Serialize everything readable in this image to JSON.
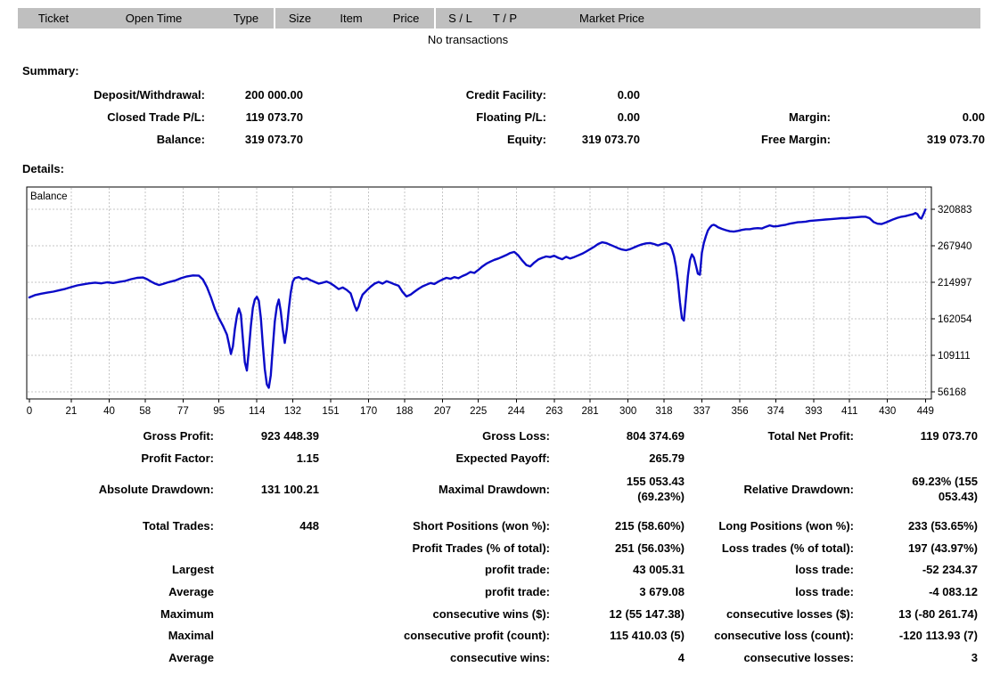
{
  "orders_table": {
    "columns": [
      {
        "label": "Ticket"
      },
      {
        "label": "Open Time"
      },
      {
        "label": "Type"
      },
      {
        "label": "Size"
      },
      {
        "label": "Item"
      },
      {
        "label": "Price"
      },
      {
        "label": "S / L"
      },
      {
        "label": "T / P"
      },
      {
        "label": "Market Price"
      }
    ],
    "empty_message": "No transactions"
  },
  "summary": {
    "heading": "Summary:",
    "rows": [
      [
        "Deposit/Withdrawal:",
        "200 000.00",
        "Credit Facility:",
        "0.00",
        "",
        ""
      ],
      [
        "Closed Trade P/L:",
        "119 073.70",
        "Floating P/L:",
        "0.00",
        "Margin:",
        "0.00"
      ],
      [
        "Balance:",
        "319 073.70",
        "Equity:",
        "319 073.70",
        "Free Margin:",
        "319 073.70"
      ]
    ]
  },
  "details": {
    "heading": "Details:"
  },
  "chart_data": {
    "type": "line",
    "title": "Balance",
    "legend_position": "top-left-inside",
    "grid": "dashed",
    "line_color": "#0a0ac8",
    "grid_color": "#c6c6c6",
    "x_ticks": [
      0,
      21,
      40,
      58,
      77,
      95,
      114,
      132,
      151,
      170,
      188,
      207,
      225,
      244,
      263,
      281,
      300,
      318,
      337,
      356,
      374,
      393,
      411,
      430,
      449
    ],
    "y_ticks": [
      320883,
      267940,
      214997,
      162054,
      109111,
      56168
    ],
    "xlim": [
      -1.3,
      452.0
    ],
    "ylim": [
      45800,
      353200
    ],
    "final_balance": 319073.7,
    "points": [
      [
        0,
        193000
      ],
      [
        3,
        196500
      ],
      [
        6,
        198500
      ],
      [
        9,
        200000
      ],
      [
        12,
        201500
      ],
      [
        15,
        203500
      ],
      [
        18,
        205500
      ],
      [
        21,
        208000
      ],
      [
        24,
        210500
      ],
      [
        27,
        212000
      ],
      [
        30,
        213500
      ],
      [
        33,
        214500
      ],
      [
        36,
        213500
      ],
      [
        39,
        215000
      ],
      [
        42,
        214000
      ],
      [
        45,
        215500
      ],
      [
        48,
        217000
      ],
      [
        51,
        219500
      ],
      [
        54,
        221500
      ],
      [
        57,
        222000
      ],
      [
        59,
        219500
      ],
      [
        61,
        216000
      ],
      [
        63,
        213000
      ],
      [
        65,
        211000
      ],
      [
        67,
        212500
      ],
      [
        69,
        214500
      ],
      [
        71,
        216000
      ],
      [
        73,
        217500
      ],
      [
        76,
        221000
      ],
      [
        79,
        223500
      ],
      [
        82,
        225000
      ],
      [
        85,
        224500
      ],
      [
        87,
        219000
      ],
      [
        89,
        208000
      ],
      [
        91,
        193000
      ],
      [
        93,
        176000
      ],
      [
        95,
        163000
      ],
      [
        97,
        152000
      ],
      [
        99,
        139000
      ],
      [
        100,
        126000
      ],
      [
        101,
        111000
      ],
      [
        102,
        122000
      ],
      [
        103,
        147000
      ],
      [
        104,
        166000
      ],
      [
        105,
        177000
      ],
      [
        106,
        168000
      ],
      [
        107,
        133000
      ],
      [
        108,
        99000
      ],
      [
        109,
        87000
      ],
      [
        110,
        117000
      ],
      [
        111,
        152000
      ],
      [
        112,
        178000
      ],
      [
        113,
        190000
      ],
      [
        114,
        194000
      ],
      [
        115,
        188000
      ],
      [
        116,
        163000
      ],
      [
        117,
        124000
      ],
      [
        118,
        89000
      ],
      [
        119,
        67000
      ],
      [
        120,
        62000
      ],
      [
        121,
        80000
      ],
      [
        122,
        121000
      ],
      [
        123,
        158000
      ],
      [
        124,
        180000
      ],
      [
        125,
        190000
      ],
      [
        126,
        173000
      ],
      [
        127,
        146000
      ],
      [
        128,
        127000
      ],
      [
        129,
        147000
      ],
      [
        130,
        176000
      ],
      [
        131,
        200000
      ],
      [
        132,
        216000
      ],
      [
        133,
        221000
      ],
      [
        135,
        222500
      ],
      [
        137,
        219500
      ],
      [
        139,
        221000
      ],
      [
        141,
        218000
      ],
      [
        143,
        215500
      ],
      [
        145,
        213000
      ],
      [
        147,
        214500
      ],
      [
        149,
        216000
      ],
      [
        151,
        213500
      ],
      [
        153,
        209500
      ],
      [
        155,
        205000
      ],
      [
        157,
        207500
      ],
      [
        159,
        204000
      ],
      [
        161,
        199000
      ],
      [
        163,
        181000
      ],
      [
        164,
        174000
      ],
      [
        165,
        180000
      ],
      [
        166,
        190000
      ],
      [
        167,
        197000
      ],
      [
        169,
        203000
      ],
      [
        171,
        208500
      ],
      [
        173,
        213000
      ],
      [
        175,
        215500
      ],
      [
        177,
        213000
      ],
      [
        179,
        216500
      ],
      [
        181,
        214500
      ],
      [
        183,
        212000
      ],
      [
        185,
        210000
      ],
      [
        187,
        201000
      ],
      [
        189,
        194500
      ],
      [
        191,
        197000
      ],
      [
        193,
        201500
      ],
      [
        195,
        205500
      ],
      [
        197,
        209000
      ],
      [
        199,
        211500
      ],
      [
        201,
        214000
      ],
      [
        203,
        212500
      ],
      [
        205,
        216000
      ],
      [
        207,
        219000
      ],
      [
        209,
        221500
      ],
      [
        211,
        220000
      ],
      [
        213,
        222500
      ],
      [
        215,
        221000
      ],
      [
        217,
        224000
      ],
      [
        219,
        226500
      ],
      [
        221,
        230000
      ],
      [
        223,
        228500
      ],
      [
        225,
        233000
      ],
      [
        227,
        238000
      ],
      [
        229,
        242000
      ],
      [
        231,
        245000
      ],
      [
        233,
        247500
      ],
      [
        235,
        249500
      ],
      [
        237,
        252000
      ],
      [
        239,
        254500
      ],
      [
        241,
        257500
      ],
      [
        243,
        259000
      ],
      [
        245,
        254000
      ],
      [
        247,
        246500
      ],
      [
        249,
        240000
      ],
      [
        251,
        238000
      ],
      [
        253,
        243500
      ],
      [
        255,
        248000
      ],
      [
        257,
        250500
      ],
      [
        259,
        252500
      ],
      [
        261,
        251500
      ],
      [
        263,
        253500
      ],
      [
        265,
        250500
      ],
      [
        267,
        248500
      ],
      [
        269,
        252000
      ],
      [
        271,
        249500
      ],
      [
        273,
        251500
      ],
      [
        275,
        254000
      ],
      [
        277,
        256500
      ],
      [
        279,
        259500
      ],
      [
        281,
        263000
      ],
      [
        283,
        266500
      ],
      [
        285,
        270500
      ],
      [
        287,
        273000
      ],
      [
        289,
        272000
      ],
      [
        291,
        269500
      ],
      [
        293,
        267000
      ],
      [
        295,
        264500
      ],
      [
        297,
        262500
      ],
      [
        299,
        261500
      ],
      [
        301,
        263000
      ],
      [
        303,
        265500
      ],
      [
        305,
        268000
      ],
      [
        307,
        270000
      ],
      [
        309,
        271500
      ],
      [
        311,
        272000
      ],
      [
        313,
        270500
      ],
      [
        315,
        268500
      ],
      [
        317,
        270500
      ],
      [
        319,
        272000
      ],
      [
        321,
        269000
      ],
      [
        322,
        263000
      ],
      [
        323,
        253000
      ],
      [
        324,
        238000
      ],
      [
        325,
        216000
      ],
      [
        326,
        186000
      ],
      [
        327,
        163000
      ],
      [
        328,
        159500
      ],
      [
        329,
        192000
      ],
      [
        330,
        224000
      ],
      [
        331,
        247000
      ],
      [
        332,
        255500
      ],
      [
        333,
        251000
      ],
      [
        334,
        239500
      ],
      [
        335,
        227500
      ],
      [
        336,
        226000
      ],
      [
        337,
        258000
      ],
      [
        338,
        272000
      ],
      [
        339,
        282000
      ],
      [
        340,
        290000
      ],
      [
        341,
        294500
      ],
      [
        342,
        297500
      ],
      [
        343,
        298500
      ],
      [
        344,
        297000
      ],
      [
        345,
        295000
      ],
      [
        347,
        292500
      ],
      [
        349,
        290500
      ],
      [
        351,
        289000
      ],
      [
        353,
        288500
      ],
      [
        355,
        289500
      ],
      [
        357,
        291000
      ],
      [
        359,
        292000
      ],
      [
        361,
        292000
      ],
      [
        363,
        293000
      ],
      [
        365,
        293500
      ],
      [
        367,
        293000
      ],
      [
        369,
        295500
      ],
      [
        371,
        297500
      ],
      [
        373,
        296000
      ],
      [
        375,
        296500
      ],
      [
        377,
        297500
      ],
      [
        379,
        298500
      ],
      [
        381,
        300000
      ],
      [
        383,
        301000
      ],
      [
        385,
        302000
      ],
      [
        387,
        302500
      ],
      [
        389,
        303000
      ],
      [
        391,
        304000
      ],
      [
        393,
        304500
      ],
      [
        395,
        305000
      ],
      [
        397,
        305500
      ],
      [
        399,
        306000
      ],
      [
        401,
        306500
      ],
      [
        403,
        307000
      ],
      [
        405,
        307500
      ],
      [
        407,
        308000
      ],
      [
        409,
        308000
      ],
      [
        411,
        308500
      ],
      [
        413,
        309000
      ],
      [
        415,
        309500
      ],
      [
        417,
        310000
      ],
      [
        419,
        310000
      ],
      [
        421,
        308000
      ],
      [
        423,
        302500
      ],
      [
        425,
        300000
      ],
      [
        427,
        299500
      ],
      [
        429,
        301500
      ],
      [
        431,
        304000
      ],
      [
        433,
        306500
      ],
      [
        435,
        308500
      ],
      [
        437,
        310000
      ],
      [
        439,
        311000
      ],
      [
        441,
        312500
      ],
      [
        443,
        314000
      ],
      [
        444,
        315500
      ],
      [
        445,
        314000
      ],
      [
        446,
        309000
      ],
      [
        447,
        307500
      ],
      [
        448,
        313500
      ],
      [
        449,
        320500
      ]
    ]
  },
  "stats": {
    "rows": [
      [
        "Gross Profit:",
        "923 448.39",
        "Gross Loss:",
        "804 374.69",
        "Total Net Profit:",
        "119 073.70"
      ],
      [
        "Profit Factor:",
        "1.15",
        "Expected Payoff:",
        "265.79",
        "",
        ""
      ],
      [
        "Absolute Drawdown:",
        "131 100.21",
        "Maximal Drawdown:",
        "155 053.43\n(69.23%)",
        "Relative Drawdown:",
        "69.23% (155\n053.43)"
      ],
      [
        "Total Trades:",
        "448",
        "Short Positions (won %):",
        "215 (58.60%)",
        "Long Positions (won %):",
        "233 (53.65%)"
      ],
      [
        "",
        "",
        "Profit Trades (% of total):",
        "251 (56.03%)",
        "Loss trades (% of total):",
        "197 (43.97%)"
      ],
      [
        "Largest",
        "",
        "profit trade:",
        "43 005.31",
        "loss trade:",
        "-52 234.37"
      ],
      [
        "Average",
        "",
        "profit trade:",
        "3 679.08",
        "loss trade:",
        "-4 083.12"
      ],
      [
        "Maximum",
        "",
        "consecutive wins ($):",
        "12 (55 147.38)",
        "consecutive losses ($):",
        "13 (-80 261.74)"
      ],
      [
        "Maximal",
        "",
        "consecutive profit (count):",
        "115 410.03 (5)",
        "consecutive loss (count):",
        "-120 113.93 (7)"
      ],
      [
        "Average",
        "",
        "consecutive wins:",
        "4",
        "consecutive losses:",
        "3"
      ]
    ]
  }
}
